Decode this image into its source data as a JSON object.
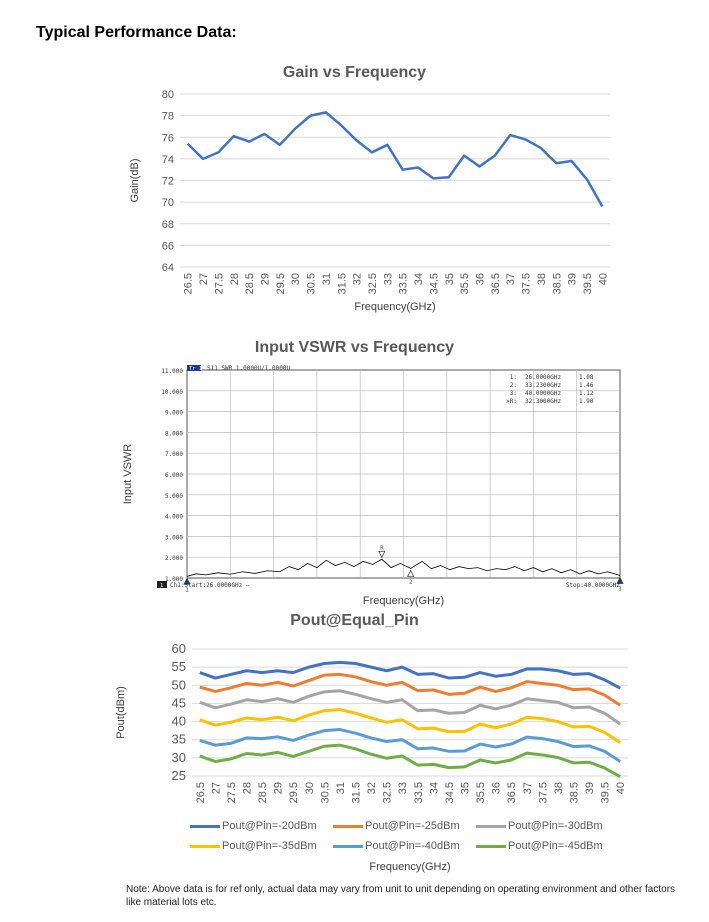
{
  "page": {
    "heading": "Typical Performance Data:",
    "note": "Note: Above data is for ref only, actual data may vary from unit to unit depending on operating environment and other factors like material lots etc."
  },
  "chart_data": [
    {
      "id": "gain",
      "type": "line",
      "title": "Gain vs Frequency",
      "xlabel": "Frequency(GHz)",
      "ylabel": "Gain(dB)",
      "categories": [
        "26.5",
        "27",
        "27.5",
        "28",
        "28.5",
        "29",
        "29.5",
        "30",
        "30.5",
        "31",
        "31.5",
        "32",
        "32.5",
        "33",
        "33.5",
        "34",
        "34.5",
        "35",
        "35.5",
        "36",
        "36.5",
        "37",
        "37.5",
        "38",
        "38.5",
        "39",
        "39.5",
        "40"
      ],
      "ylim": [
        64,
        80
      ],
      "yticks": [
        "64",
        "66",
        "68",
        "70",
        "72",
        "74",
        "76",
        "78",
        "80"
      ],
      "grid": "horizontal",
      "series": [
        {
          "name": "Gain",
          "color": "#4472C4",
          "values": [
            75.4,
            74.0,
            74.6,
            76.1,
            75.6,
            76.3,
            75.3,
            76.8,
            78.0,
            78.3,
            77.1,
            75.7,
            74.6,
            75.3,
            73.0,
            73.2,
            72.2,
            72.3,
            74.3,
            73.3,
            74.3,
            76.2,
            75.8,
            75.0,
            73.6,
            73.8,
            72.1,
            69.6
          ]
        }
      ]
    },
    {
      "id": "vswr",
      "type": "line",
      "title": "Input VSWR vs Frequency",
      "xlabel": "Frequency(GHz)",
      "ylabel": "Input VSWR",
      "ylim": [
        1,
        11
      ],
      "xlim": [
        26,
        40
      ],
      "yticks": [
        "1.000",
        "2.000",
        "3.000",
        "4.000",
        "5.000",
        "6.000",
        "7.000",
        "8.000",
        "9.000",
        "10.000",
        "11.000"
      ],
      "analyzer_header": "S11 SWR 1.0000U/1.0000U",
      "trace_tag": "Tr 1",
      "channel_tag": "1",
      "start_label": "Ch1:Start:26.0000GHz —",
      "stop_label": "Stop:40.0000GHz",
      "marker_table": [
        {
          "id": "1:",
          "freq": "26.0000GHz",
          "value": "1.08"
        },
        {
          "id": "2:",
          "freq": "33.2300GHz",
          "value": "1.46"
        },
        {
          "id": "3:",
          "freq": "40.0000GHz",
          "value": "1.12"
        },
        {
          "id": ">R:",
          "freq": "32.3000GHz",
          "value": "1.90"
        }
      ],
      "marker_labels": [
        "1",
        "2",
        "R",
        "3"
      ],
      "series": [
        {
          "name": "S11 SWR",
          "color": "#000000",
          "x": [
            26.0,
            26.3,
            26.6,
            27.0,
            27.4,
            27.8,
            28.2,
            28.6,
            29.0,
            29.3,
            29.6,
            29.9,
            30.2,
            30.5,
            30.8,
            31.1,
            31.4,
            31.7,
            32.0,
            32.3,
            32.6,
            32.9,
            33.23,
            33.6,
            33.9,
            34.2,
            34.5,
            34.8,
            35.1,
            35.4,
            35.7,
            36.0,
            36.3,
            36.6,
            36.9,
            37.2,
            37.5,
            37.8,
            38.1,
            38.4,
            38.7,
            39.0,
            39.3,
            39.6,
            40.0
          ],
          "values": [
            1.08,
            1.2,
            1.15,
            1.25,
            1.18,
            1.3,
            1.22,
            1.35,
            1.3,
            1.55,
            1.4,
            1.7,
            1.5,
            1.85,
            1.6,
            1.75,
            1.55,
            1.8,
            1.65,
            1.9,
            1.5,
            1.7,
            1.46,
            1.8,
            1.45,
            1.6,
            1.4,
            1.55,
            1.45,
            1.5,
            1.35,
            1.45,
            1.4,
            1.55,
            1.35,
            1.5,
            1.3,
            1.45,
            1.25,
            1.4,
            1.2,
            1.35,
            1.2,
            1.3,
            1.12
          ]
        }
      ]
    },
    {
      "id": "pout",
      "type": "line",
      "title": "Pout@Equal_Pin",
      "xlabel": "Frequency(GHz)",
      "ylabel": "Pout(dBm)",
      "categories": [
        "26.5",
        "27",
        "27.5",
        "28",
        "28.5",
        "29",
        "29.5",
        "30",
        "30.5",
        "31",
        "31.5",
        "32",
        "32.5",
        "33",
        "33.5",
        "34",
        "34.5",
        "35",
        "35.5",
        "36",
        "36.5",
        "37",
        "37.5",
        "38",
        "38.5",
        "39",
        "39.5",
        "40"
      ],
      "ylim": [
        25,
        60
      ],
      "yticks": [
        "25",
        "30",
        "35",
        "40",
        "45",
        "50",
        "55",
        "60"
      ],
      "grid": "horizontal",
      "series": [
        {
          "name": "Pout@Pin=-20dBm",
          "color": "#4472C4",
          "values": [
            53.5,
            52.0,
            53.0,
            54.0,
            53.5,
            54.0,
            53.5,
            55.0,
            56.0,
            56.3,
            56.0,
            55.0,
            54.0,
            55.0,
            53.0,
            53.2,
            52.0,
            52.2,
            53.5,
            52.5,
            53.0,
            54.5,
            54.5,
            54.0,
            53.0,
            53.2,
            51.5,
            49.2
          ]
        },
        {
          "name": "Pout@Pin=-25dBm",
          "color": "#ED7D31",
          "values": [
            49.5,
            48.3,
            49.3,
            50.5,
            50.0,
            50.8,
            49.8,
            51.3,
            52.8,
            53.0,
            52.3,
            51.0,
            50.0,
            50.8,
            48.5,
            48.7,
            47.5,
            47.8,
            49.5,
            48.3,
            49.3,
            51.0,
            50.5,
            50.0,
            48.8,
            49.0,
            47.3,
            44.5
          ]
        },
        {
          "name": "Pout@Pin=-30dBm",
          "color": "#A5A5A5",
          "values": [
            45.3,
            43.8,
            44.8,
            46.0,
            45.5,
            46.3,
            45.3,
            47.0,
            48.2,
            48.5,
            47.5,
            46.3,
            45.3,
            46.0,
            43.0,
            43.2,
            42.3,
            42.5,
            44.5,
            43.5,
            44.5,
            46.3,
            45.8,
            45.3,
            43.8,
            44.0,
            42.3,
            39.3
          ]
        },
        {
          "name": "Pout@Pin=-35dBm",
          "color": "#FFC000",
          "values": [
            40.5,
            39.0,
            39.8,
            41.0,
            40.5,
            41.2,
            40.2,
            41.8,
            43.0,
            43.3,
            42.3,
            41.0,
            39.8,
            40.5,
            38.0,
            38.2,
            37.2,
            37.3,
            39.3,
            38.3,
            39.3,
            41.2,
            40.8,
            40.0,
            38.5,
            38.7,
            37.0,
            34.2
          ]
        },
        {
          "name": "Pout@Pin=-40dBm",
          "color": "#5B9BD5",
          "values": [
            34.8,
            33.5,
            34.0,
            35.5,
            35.3,
            35.8,
            34.8,
            36.3,
            37.5,
            37.8,
            36.8,
            35.5,
            34.5,
            35.0,
            32.5,
            32.7,
            31.8,
            31.9,
            33.8,
            33.0,
            33.8,
            35.7,
            35.3,
            34.5,
            33.1,
            33.3,
            31.8,
            29.0
          ]
        },
        {
          "name": "Pout@Pin=-45dBm",
          "color": "#70AD47",
          "values": [
            30.5,
            29.0,
            29.7,
            31.2,
            30.8,
            31.5,
            30.4,
            31.8,
            33.2,
            33.5,
            32.5,
            31.0,
            29.9,
            30.5,
            28.0,
            28.2,
            27.3,
            27.5,
            29.4,
            28.6,
            29.4,
            31.3,
            30.8,
            30.1,
            28.6,
            28.8,
            27.2,
            24.8
          ]
        }
      ]
    }
  ]
}
